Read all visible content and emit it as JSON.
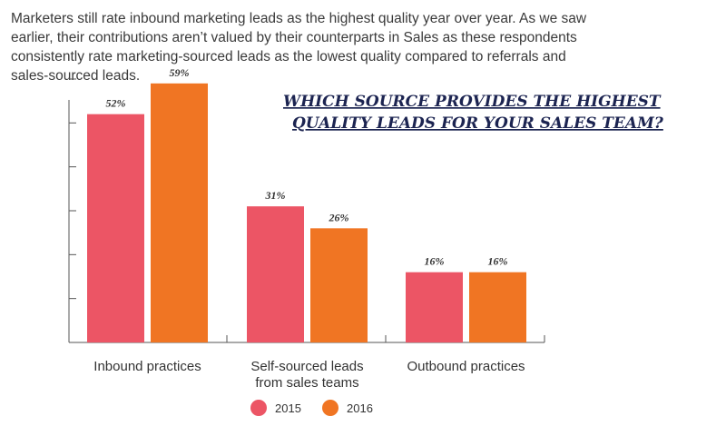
{
  "intro_text": "Marketers still rate inbound marketing leads as the highest quality year over year. As we saw earlier, their contributions aren’t valued by their counterparts in Sales as these respondents consistently rate marketing-sourced leads as the lowest quality compared to referrals and sales-sourced leads.",
  "chart_data": {
    "type": "bar",
    "title": [
      "WHICH SOURCE PROVIDES THE HIGHEST",
      "QUALITY LEADS FOR YOUR SALES TEAM?"
    ],
    "categories": [
      [
        "Inbound practices"
      ],
      [
        "Self-sourced leads",
        "from sales teams"
      ],
      [
        "Outbound practices"
      ]
    ],
    "series": [
      {
        "name": "2015",
        "color": "#ec5565",
        "values": [
          52,
          31,
          16
        ]
      },
      {
        "name": "2016",
        "color": "#f07523",
        "values": [
          59,
          26,
          16
        ]
      }
    ],
    "value_suffix": "%",
    "ylim": [
      0,
      60
    ],
    "legend_position": "bottom",
    "grid": false
  }
}
